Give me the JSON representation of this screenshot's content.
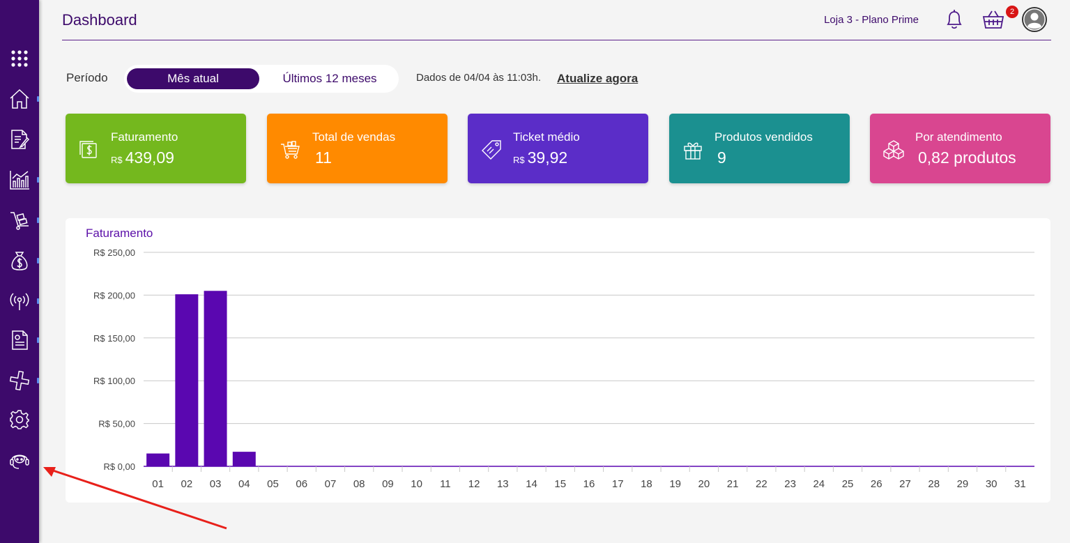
{
  "sidebar": {
    "items": [
      {
        "name": "apps-grid-icon"
      },
      {
        "name": "home-icon"
      },
      {
        "name": "document-edit-icon"
      },
      {
        "name": "bar-chart-icon"
      },
      {
        "name": "cart-dolly-icon"
      },
      {
        "name": "money-bag-icon"
      },
      {
        "name": "broadcast-icon"
      },
      {
        "name": "receipt-icon"
      },
      {
        "name": "integrations-icon"
      },
      {
        "name": "settings-gear-icon"
      },
      {
        "name": "support-agent-icon"
      }
    ]
  },
  "header": {
    "title": "Dashboard",
    "store": "Loja 3 - Plano Prime",
    "cart_badge": "2"
  },
  "period": {
    "label": "Período",
    "options": [
      "Mês atual",
      "Últimos 12 meses"
    ],
    "selected": "Mês atual",
    "data_info": "Dados de 04/04 às 11:03h.",
    "refresh_link": "Atualize agora"
  },
  "cards": [
    {
      "title": "Faturamento",
      "currency": "R$",
      "value": "439,09",
      "color": "#74b81e",
      "icon": "cash-icon"
    },
    {
      "title": "Total de vendas",
      "currency": "",
      "value": "11",
      "color": "#ff8a00",
      "icon": "shopping-cart-icon"
    },
    {
      "title": "Ticket médio",
      "currency": "R$",
      "value": "39,92",
      "color": "#5b2dc8",
      "icon": "tag-icon"
    },
    {
      "title": "Produtos vendidos",
      "currency": "",
      "value": "9",
      "color": "#1b9090",
      "icon": "gift-icon"
    },
    {
      "title": "Por atendimento",
      "currency": "",
      "value": "0,82 produtos",
      "color": "#d94690",
      "icon": "boxes-icon"
    }
  ],
  "chart_data": {
    "type": "bar",
    "title": "Faturamento",
    "categories": [
      "01",
      "02",
      "03",
      "04",
      "05",
      "06",
      "07",
      "08",
      "09",
      "10",
      "11",
      "12",
      "13",
      "14",
      "15",
      "16",
      "17",
      "18",
      "19",
      "20",
      "21",
      "22",
      "23",
      "24",
      "25",
      "26",
      "27",
      "28",
      "29",
      "30",
      "31"
    ],
    "values": [
      15,
      201,
      205,
      17,
      0,
      0,
      0,
      0,
      0,
      0,
      0,
      0,
      0,
      0,
      0,
      0,
      0,
      0,
      0,
      0,
      0,
      0,
      0,
      0,
      0,
      0,
      0,
      0,
      0,
      0,
      0
    ],
    "ylim": [
      0,
      250
    ],
    "yticks": [
      "R$ 0,00",
      "R$ 50,00",
      "R$ 100,00",
      "R$ 150,00",
      "R$ 200,00",
      "R$ 250,00"
    ],
    "ytick_values": [
      0,
      50,
      100,
      150,
      200,
      250
    ],
    "grid": true,
    "bar_color": "#5a07b0"
  }
}
